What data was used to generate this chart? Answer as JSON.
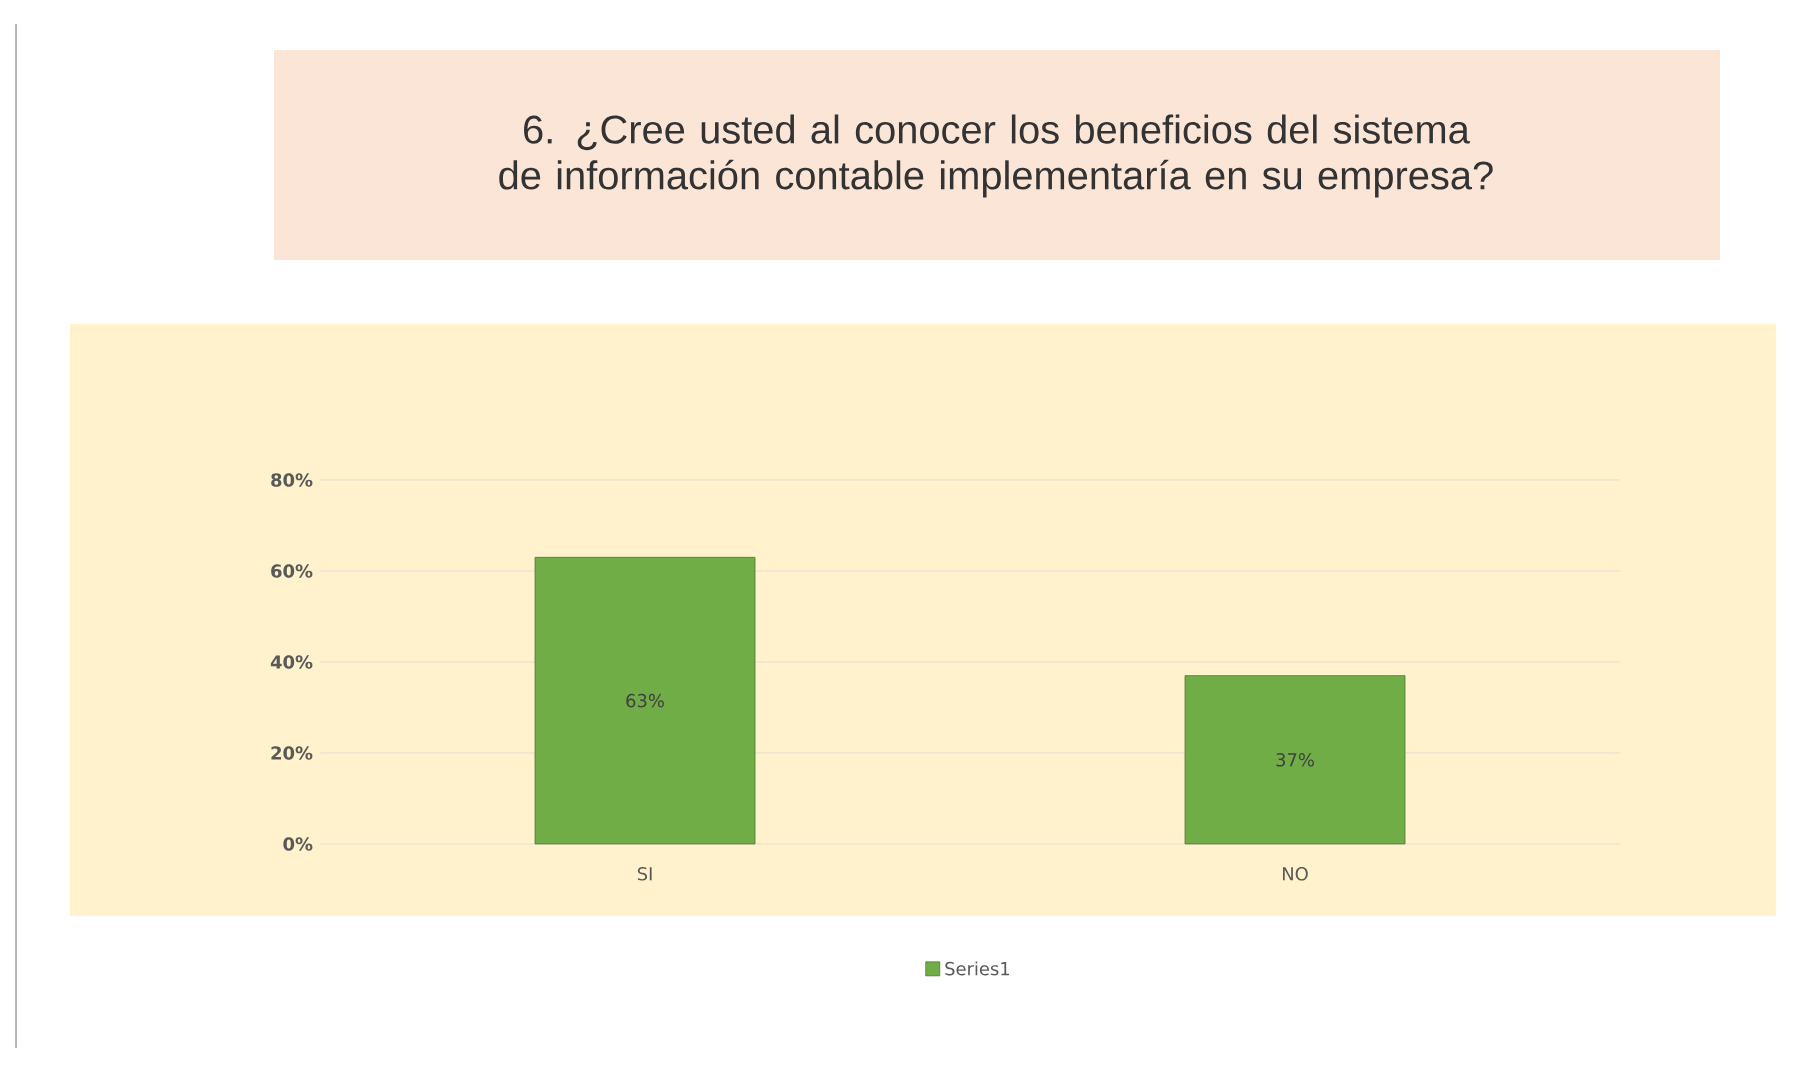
{
  "chart_data": {
    "type": "bar",
    "title": "6. ¿Cree usted al conocer los beneficios del sistema de información contable implementaría en su empresa?",
    "categories": [
      "SI",
      "NO"
    ],
    "series": [
      {
        "name": "Series1",
        "color": "#70ad47",
        "values": [
          63,
          37
        ],
        "value_labels": [
          "63%",
          "37%"
        ]
      }
    ],
    "ylim": [
      0,
      80
    ],
    "yticks": [
      {
        "value": 0,
        "label": "0%"
      },
      {
        "value": 20,
        "label": "20%"
      },
      {
        "value": 40,
        "label": "40%"
      },
      {
        "value": 60,
        "label": "60%"
      },
      {
        "value": 80,
        "label": "80%"
      }
    ],
    "grid": "y",
    "legend": "bottom"
  }
}
